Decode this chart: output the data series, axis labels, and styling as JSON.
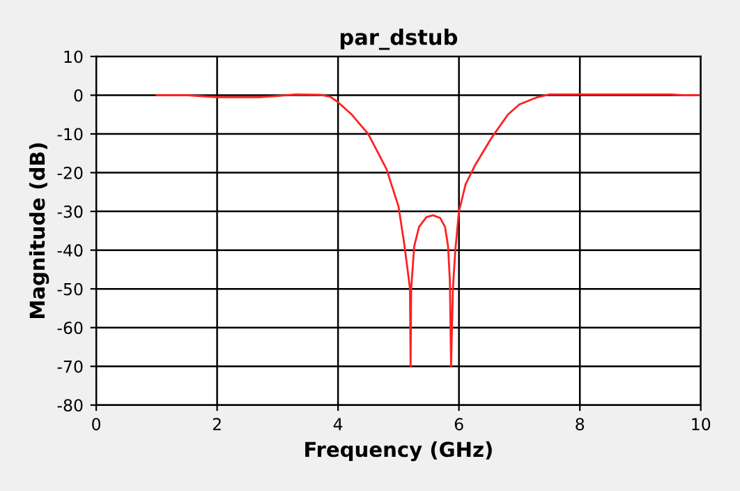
{
  "chart_data": {
    "type": "line",
    "title": "par_dstub",
    "xlabel": "Frequency (GHz)",
    "ylabel": "Magnitude (dB)",
    "xlim": [
      0,
      10
    ],
    "ylim": [
      -80,
      10
    ],
    "xticks": [
      0,
      2,
      4,
      6,
      8,
      10
    ],
    "yticks": [
      -80,
      -70,
      -60,
      -50,
      -40,
      -30,
      -20,
      -10,
      0,
      10
    ],
    "grid": true,
    "marker": "none",
    "line_style": "solid",
    "series": [
      {
        "color": "#ff2020",
        "x": [
          1.0,
          1.5,
          2.0,
          2.7,
          3.0,
          3.3,
          3.7,
          3.87,
          4.0,
          4.22,
          4.5,
          4.8,
          5.0,
          5.09,
          5.15,
          5.19,
          5.2,
          5.21,
          5.26,
          5.34,
          5.46,
          5.57,
          5.69,
          5.77,
          5.82,
          5.85,
          5.87,
          5.9,
          5.94,
          6.0,
          6.11,
          6.27,
          6.54,
          6.81,
          7.0,
          7.3,
          7.5,
          8.0,
          9.0,
          9.5,
          9.7,
          10.0
        ],
        "values": [
          0,
          0,
          -0.5,
          -0.5,
          -0.2,
          0.2,
          0.1,
          -0.4,
          -1.8,
          -4.9,
          -10,
          -19,
          -28.7,
          -37.8,
          -45,
          -50,
          -70,
          -50,
          -39,
          -34,
          -31.5,
          -31,
          -31.7,
          -34,
          -39,
          -48,
          -70,
          -50,
          -40,
          -30,
          -23,
          -18,
          -11,
          -5,
          -2.4,
          -0.5,
          0.2,
          0.2,
          0.2,
          0.2,
          0,
          0
        ]
      }
    ]
  }
}
